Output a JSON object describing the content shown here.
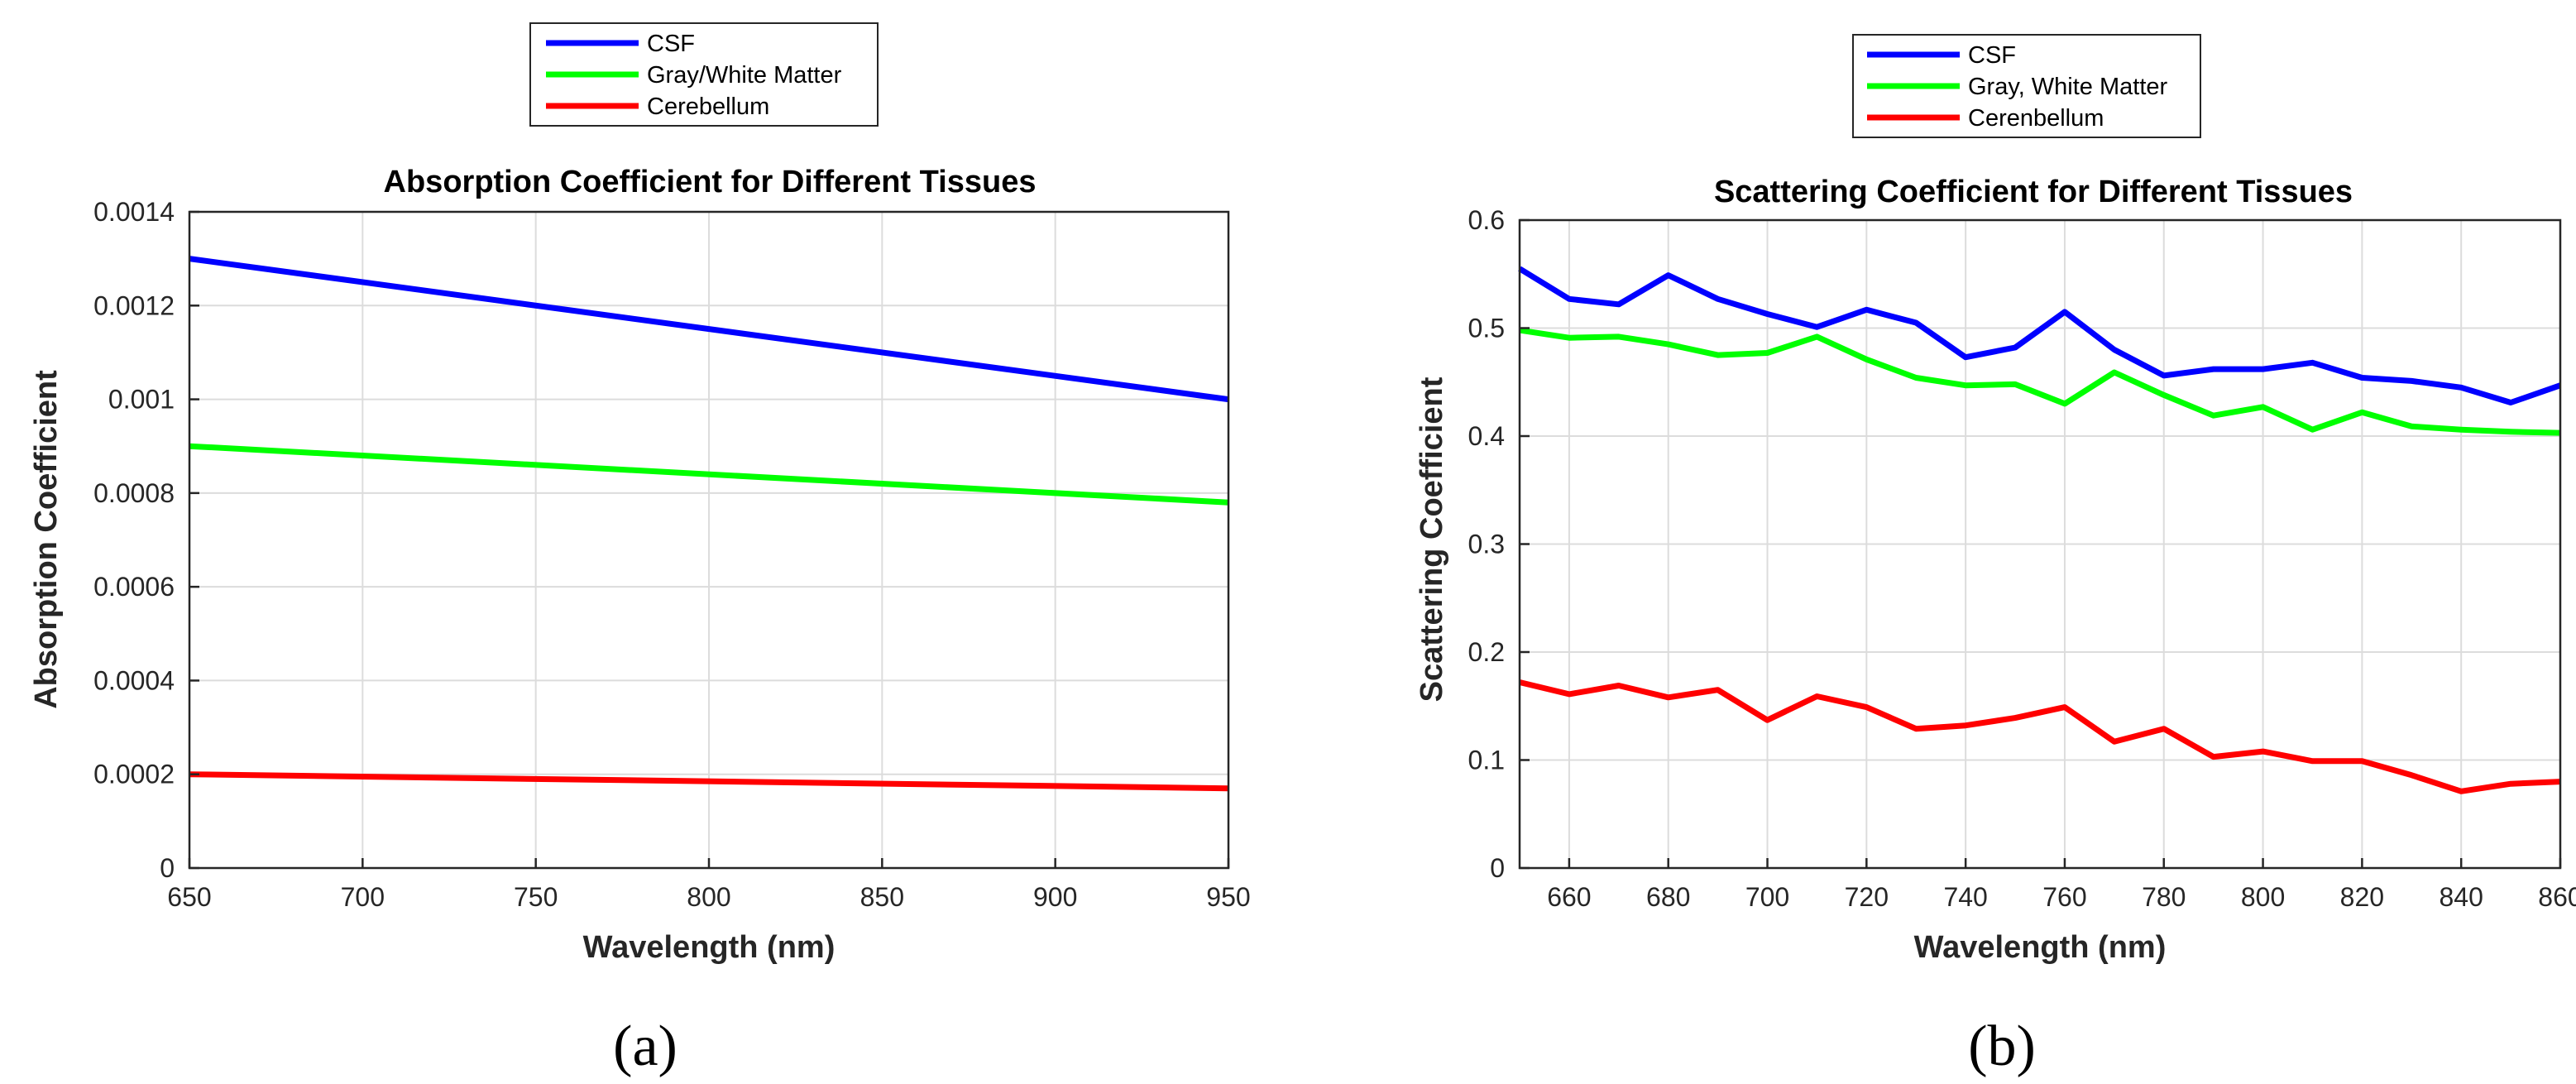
{
  "chart_data": [
    {
      "id": "a",
      "type": "line",
      "title": "Absorption Coefficient for Different Tissues",
      "xlabel": "Wavelength (nm)",
      "ylabel": "Absorption Coefficient",
      "caption": "(a)",
      "xlim": [
        650,
        950
      ],
      "ylim": [
        0,
        0.0014
      ],
      "xticks": [
        650,
        700,
        750,
        800,
        850,
        900,
        950
      ],
      "xtick_labels": [
        "650",
        "700",
        "750",
        "800",
        "850",
        "900",
        "950"
      ],
      "yticks": [
        0,
        0.0002,
        0.0004,
        0.0006,
        0.0008,
        0.001,
        0.0012,
        0.0014
      ],
      "ytick_labels": [
        "0",
        "0.0002",
        "0.0004",
        "0.0006",
        "0.0008",
        "0.001",
        "0.0012",
        "0.0014"
      ],
      "grid": true,
      "legend_position": "top-center-outside",
      "x": [
        650,
        950
      ],
      "series": [
        {
          "name": "CSF",
          "color": "#0000ff",
          "values": [
            0.0013,
            0.001
          ]
        },
        {
          "name": "Gray/White Matter",
          "color": "#00ff00",
          "values": [
            0.0009,
            0.00078
          ]
        },
        {
          "name": "Cerebellum",
          "color": "#ff0000",
          "values": [
            0.0002,
            0.00017
          ]
        }
      ]
    },
    {
      "id": "b",
      "type": "line",
      "title": "Scattering Coefficient for Different Tissues",
      "xlabel": "Wavelength (nm)",
      "ylabel": "Scattering Coefficient",
      "caption": "(b)",
      "xlim": [
        650,
        860
      ],
      "ylim": [
        0,
        0.6
      ],
      "xticks": [
        660,
        680,
        700,
        720,
        740,
        760,
        780,
        800,
        820,
        840,
        860
      ],
      "xtick_labels": [
        "660",
        "680",
        "700",
        "720",
        "740",
        "760",
        "780",
        "800",
        "820",
        "840",
        "860"
      ],
      "yticks": [
        0,
        0.1,
        0.2,
        0.3,
        0.4,
        0.5,
        0.6
      ],
      "ytick_labels": [
        "0",
        "0.1",
        "0.2",
        "0.3",
        "0.4",
        "0.5",
        "0.6"
      ],
      "grid": true,
      "legend_position": "top-center-outside",
      "x": [
        650,
        660,
        670,
        680,
        690,
        700,
        710,
        720,
        730,
        740,
        750,
        760,
        770,
        780,
        790,
        800,
        810,
        820,
        830,
        840,
        850,
        860
      ],
      "series": [
        {
          "name": "CSF",
          "color": "#0000ff",
          "values": [
            0.555,
            0.527,
            0.522,
            0.549,
            0.527,
            0.513,
            0.501,
            0.517,
            0.505,
            0.473,
            0.482,
            0.515,
            0.48,
            0.456,
            0.462,
            0.462,
            0.468,
            0.454,
            0.451,
            0.445,
            0.431,
            0.447
          ]
        },
        {
          "name": "Gray, White Matter",
          "color": "#00ff00",
          "values": [
            0.498,
            0.491,
            0.492,
            0.485,
            0.475,
            0.477,
            0.492,
            0.471,
            0.454,
            0.447,
            0.448,
            0.43,
            0.459,
            0.438,
            0.419,
            0.427,
            0.406,
            0.422,
            0.409,
            0.406,
            0.404,
            0.403
          ]
        },
        {
          "name": "Cerenbellum",
          "color": "#ff0000",
          "values": [
            0.172,
            0.161,
            0.169,
            0.158,
            0.165,
            0.137,
            0.159,
            0.149,
            0.129,
            0.132,
            0.139,
            0.149,
            0.117,
            0.129,
            0.103,
            0.108,
            0.099,
            0.099,
            0.086,
            0.071,
            0.078,
            0.08
          ]
        }
      ]
    }
  ]
}
